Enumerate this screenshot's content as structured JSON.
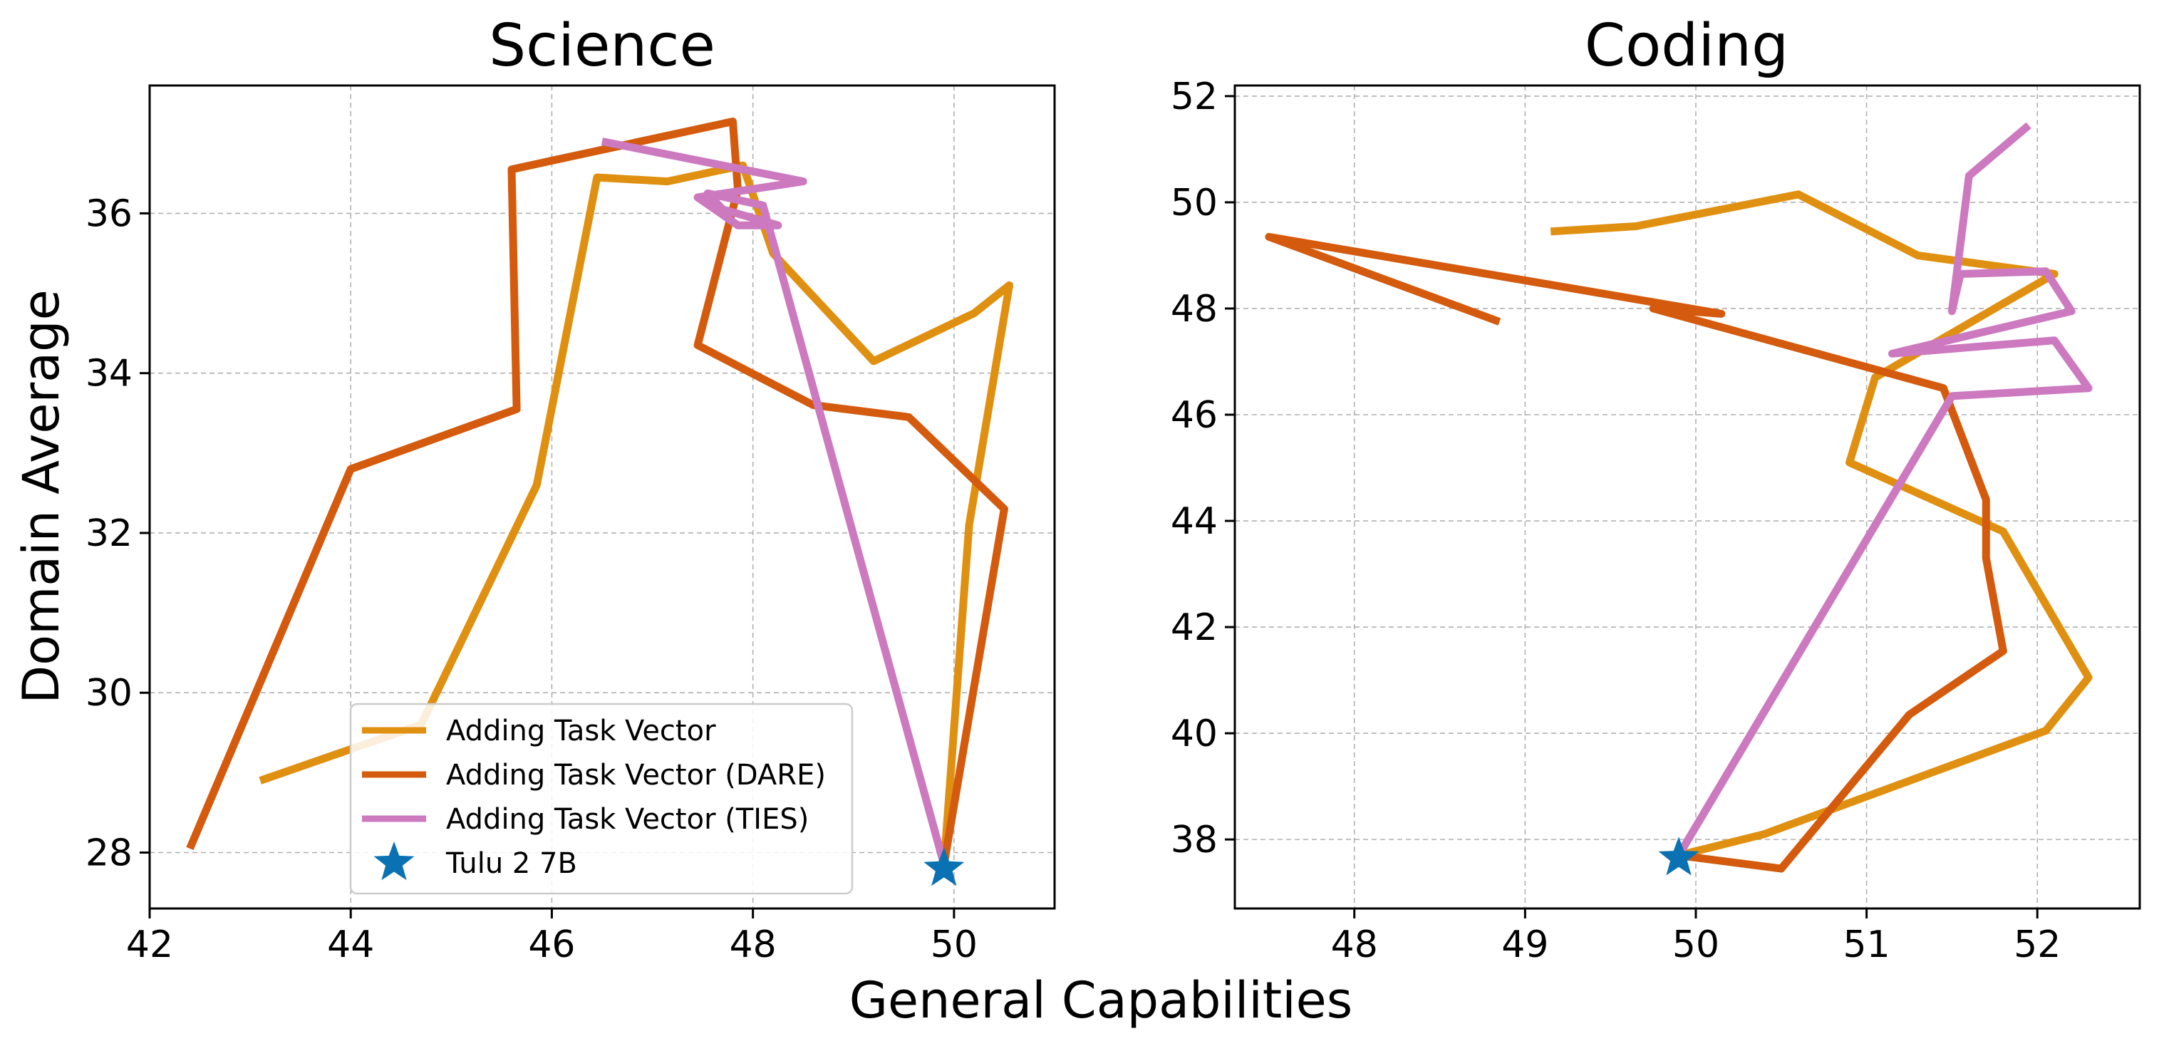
{
  "figure": {
    "xlabel": "General Capabilities",
    "ylabel": "Domain Average"
  },
  "colors": {
    "Adding Task Vector": "#E09010",
    "Adding Task Vector (DARE)": "#D45A0E",
    "Adding Task Vector (TIES)": "#CC79C0",
    "Tulu 2 7B": "#0A72B2"
  },
  "legend": {
    "location": "lower-center (Science panel)",
    "entries": [
      {
        "label": "Adding Task Vector",
        "marker": "line"
      },
      {
        "label": "Adding Task Vector (DARE)",
        "marker": "line"
      },
      {
        "label": "Adding Task Vector (TIES)",
        "marker": "line"
      },
      {
        "label": "Tulu 2 7B",
        "marker": "star"
      }
    ]
  },
  "chart_data": [
    {
      "type": "line",
      "title": "Science",
      "xlim": [
        42,
        51
      ],
      "ylim": [
        27.3,
        37.6
      ],
      "xticks": [
        "42",
        "44",
        "46",
        "48",
        "50"
      ],
      "yticks": [
        "28",
        "30",
        "32",
        "34",
        "36"
      ],
      "grid": true,
      "series": [
        {
          "name": "Adding Task Vector",
          "points": [
            [
              43.1,
              28.9
            ],
            [
              44.7,
              29.6
            ],
            [
              45.85,
              32.6
            ],
            [
              46.45,
              36.45
            ],
            [
              47.15,
              36.4
            ],
            [
              47.9,
              36.6
            ],
            [
              48.2,
              35.5
            ],
            [
              49.2,
              34.15
            ],
            [
              50.2,
              34.75
            ],
            [
              50.55,
              35.1
            ],
            [
              50.15,
              32.1
            ],
            [
              49.9,
              27.85
            ]
          ]
        },
        {
          "name": "Adding Task Vector (DARE)",
          "points": [
            [
              42.4,
              28.05
            ],
            [
              44.0,
              32.8
            ],
            [
              45.65,
              33.55
            ],
            [
              45.6,
              36.55
            ],
            [
              47.8,
              37.15
            ],
            [
              47.85,
              36.3
            ],
            [
              47.45,
              34.35
            ],
            [
              48.6,
              33.6
            ],
            [
              49.55,
              33.45
            ],
            [
              50.5,
              32.3
            ],
            [
              49.9,
              27.85
            ]
          ]
        },
        {
          "name": "Adding Task Vector (TIES)",
          "points": [
            [
              46.5,
              36.9
            ],
            [
              48.5,
              36.4
            ],
            [
              47.45,
              36.2
            ],
            [
              47.85,
              35.85
            ],
            [
              48.25,
              35.85
            ],
            [
              47.7,
              36.05
            ],
            [
              47.55,
              36.25
            ],
            [
              48.1,
              36.1
            ],
            [
              49.9,
              27.85
            ]
          ]
        },
        {
          "name": "Tulu 2 7B",
          "marker": "star",
          "points": [
            [
              49.9,
              27.8
            ]
          ]
        }
      ]
    },
    {
      "type": "line",
      "title": "Coding",
      "xlim": [
        47.3,
        52.6
      ],
      "ylim": [
        36.7,
        52.2
      ],
      "xticks": [
        "48",
        "49",
        "50",
        "51",
        "52"
      ],
      "yticks": [
        "38",
        "40",
        "42",
        "44",
        "46",
        "48",
        "50",
        "52"
      ],
      "grid": true,
      "series": [
        {
          "name": "Adding Task Vector",
          "points": [
            [
              49.15,
              49.45
            ],
            [
              49.65,
              49.55
            ],
            [
              50.6,
              50.15
            ],
            [
              51.3,
              49.0
            ],
            [
              52.1,
              48.65
            ],
            [
              51.05,
              46.7
            ],
            [
              50.9,
              45.1
            ],
            [
              51.8,
              43.8
            ],
            [
              52.3,
              41.05
            ],
            [
              52.05,
              40.05
            ],
            [
              50.4,
              38.1
            ],
            [
              49.9,
              37.7
            ]
          ]
        },
        {
          "name": "Adding Task Vector (DARE)",
          "points": [
            [
              48.85,
              47.75
            ],
            [
              47.5,
              49.35
            ],
            [
              50.15,
              47.9
            ],
            [
              49.75,
              48.0
            ],
            [
              51.45,
              46.5
            ],
            [
              51.7,
              44.4
            ],
            [
              51.7,
              43.3
            ],
            [
              51.8,
              41.55
            ],
            [
              51.25,
              40.35
            ],
            [
              50.5,
              37.45
            ],
            [
              49.9,
              37.7
            ]
          ]
        },
        {
          "name": "Adding Task Vector (TIES)",
          "points": [
            [
              51.95,
              51.45
            ],
            [
              51.6,
              50.5
            ],
            [
              51.5,
              47.95
            ],
            [
              51.55,
              48.65
            ],
            [
              52.05,
              48.7
            ],
            [
              52.2,
              47.95
            ],
            [
              51.15,
              47.15
            ],
            [
              52.1,
              47.4
            ],
            [
              52.3,
              46.5
            ],
            [
              51.5,
              46.35
            ],
            [
              49.9,
              37.7
            ]
          ]
        },
        {
          "name": "Tulu 2 7B",
          "marker": "star",
          "points": [
            [
              49.9,
              37.65
            ]
          ]
        }
      ]
    }
  ]
}
